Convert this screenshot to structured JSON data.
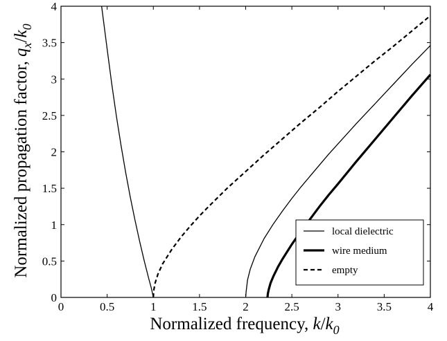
{
  "chart_data": {
    "type": "line",
    "xlabel": {
      "main": "Normalized frequency, ",
      "var": "k",
      "slash": "/",
      "sub_var": "k",
      "sub": "0"
    },
    "ylabel": {
      "main": "Normalized propagation factor, ",
      "var": "q",
      "var_sub": "x",
      "slash": "/",
      "sub_var": "k",
      "sub": "0"
    },
    "xlim": [
      0,
      4
    ],
    "ylim": [
      0,
      4
    ],
    "grid": false,
    "legend_position": "bottom-right",
    "x_ticks": [
      0,
      0.5,
      1,
      1.5,
      2,
      2.5,
      3,
      3.5,
      4
    ],
    "y_ticks": [
      0,
      0.5,
      1,
      1.5,
      2,
      2.5,
      3,
      3.5,
      4
    ],
    "x_tick_labels": [
      "0",
      "0.5",
      "1",
      "1.5",
      "2",
      "2.5",
      "3",
      "3.5",
      "4"
    ],
    "y_tick_labels": [
      "0",
      "0.5",
      "1",
      "1.5",
      "2",
      "2.5",
      "3",
      "3.5",
      "4"
    ],
    "series": [
      {
        "name": "local dielectric",
        "style": "solid",
        "color": "#000000",
        "width": 1.3,
        "segments": [
          [
            [
              0.44,
              4.0
            ],
            [
              0.5,
              3.41
            ],
            [
              0.55,
              2.93
            ],
            [
              0.6,
              2.49
            ],
            [
              0.65,
              2.09
            ],
            [
              0.7,
              1.72
            ],
            [
              0.75,
              1.38
            ],
            [
              0.8,
              1.07
            ],
            [
              0.85,
              0.78
            ],
            [
              0.9,
              0.51
            ],
            [
              0.95,
              0.26
            ],
            [
              0.98,
              0.12
            ],
            [
              1.0,
              0.0
            ]
          ],
          [
            [
              2.0,
              0.0
            ],
            [
              2.005,
              0.08
            ],
            [
              2.02,
              0.24
            ],
            [
              2.05,
              0.39
            ],
            [
              2.1,
              0.56
            ],
            [
              2.2,
              0.81
            ],
            [
              2.3,
              1.01
            ],
            [
              2.4,
              1.19
            ],
            [
              2.5,
              1.36
            ],
            [
              2.6,
              1.52
            ],
            [
              2.7,
              1.67
            ],
            [
              2.8,
              1.82
            ],
            [
              2.9,
              1.97
            ],
            [
              3.0,
              2.11
            ],
            [
              3.2,
              2.39
            ],
            [
              3.4,
              2.66
            ],
            [
              3.6,
              2.93
            ],
            [
              3.8,
              3.2
            ],
            [
              4.0,
              3.46
            ]
          ]
        ]
      },
      {
        "name": "wire medium",
        "style": "solid",
        "color": "#000000",
        "width": 3.2,
        "segments": [
          [
            [
              2.236,
              0.0
            ],
            [
              2.24,
              0.05
            ],
            [
              2.25,
              0.11
            ],
            [
              2.27,
              0.2
            ],
            [
              2.3,
              0.29
            ],
            [
              2.35,
              0.42
            ],
            [
              2.4,
              0.53
            ],
            [
              2.5,
              0.73
            ],
            [
              2.6,
              0.91
            ],
            [
              2.7,
              1.08
            ],
            [
              2.8,
              1.25
            ],
            [
              2.9,
              1.41
            ],
            [
              3.0,
              1.56
            ],
            [
              3.2,
              1.87
            ],
            [
              3.4,
              2.17
            ],
            [
              3.6,
              2.47
            ],
            [
              3.8,
              2.77
            ],
            [
              4.0,
              3.06
            ]
          ]
        ]
      },
      {
        "name": "empty",
        "style": "dashed",
        "color": "#000000",
        "width": 2.2,
        "segments": [
          [
            [
              1.0,
              0.0
            ],
            [
              1.005,
              0.1
            ],
            [
              1.02,
              0.2
            ],
            [
              1.05,
              0.32
            ],
            [
              1.1,
              0.46
            ],
            [
              1.2,
              0.66
            ],
            [
              1.3,
              0.83
            ],
            [
              1.4,
              0.98
            ],
            [
              1.5,
              1.12
            ],
            [
              1.6,
              1.25
            ],
            [
              1.8,
              1.5
            ],
            [
              2.0,
              1.73
            ],
            [
              2.2,
              1.96
            ],
            [
              2.4,
              2.18
            ],
            [
              2.6,
              2.4
            ],
            [
              2.8,
              2.61
            ],
            [
              3.0,
              2.83
            ],
            [
              3.2,
              3.04
            ],
            [
              3.4,
              3.25
            ],
            [
              3.6,
              3.45
            ],
            [
              3.8,
              3.66
            ],
            [
              4.0,
              3.87
            ]
          ]
        ]
      }
    ]
  }
}
